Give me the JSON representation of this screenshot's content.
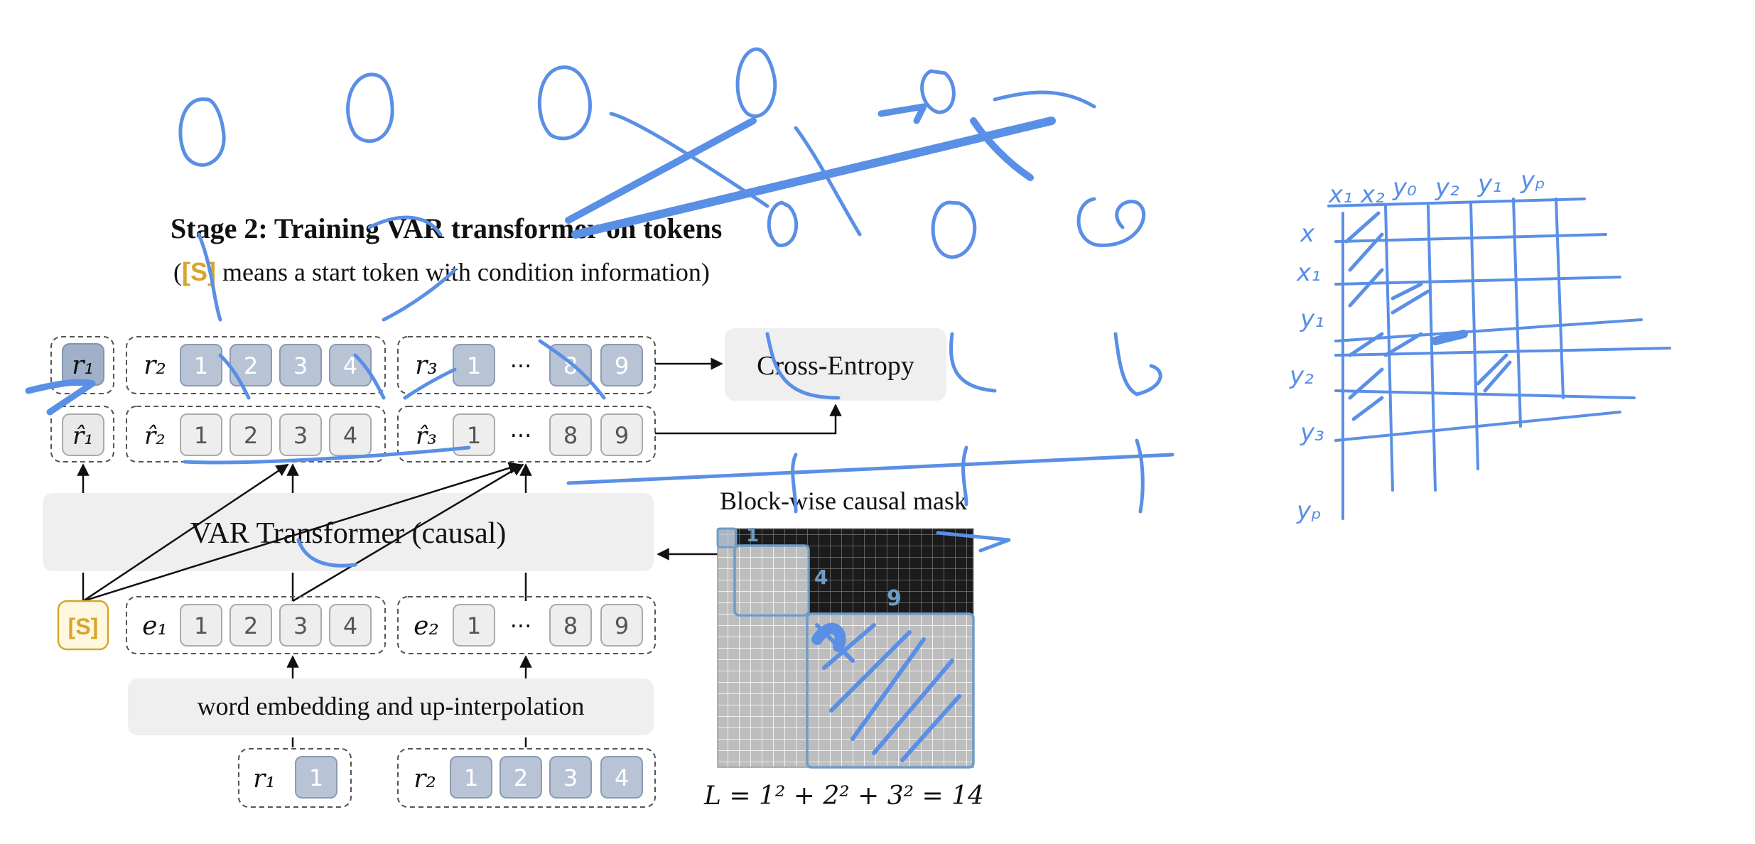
{
  "title": "Stage 2:  Training VAR transformer on tokens",
  "subtitle": {
    "open": "(",
    "token": "[S]",
    "text": " means a start token with condition information)"
  },
  "start_token": "[S]",
  "rows": {
    "targets": [
      {
        "label": "r₁",
        "tokens": []
      },
      {
        "label": "r₂",
        "tokens": [
          "1",
          "2",
          "3",
          "4"
        ]
      },
      {
        "label": "r₃",
        "tokens": [
          "1",
          "···",
          "8",
          "9"
        ]
      }
    ],
    "predictions": [
      {
        "label": "r̂₁",
        "tokens": []
      },
      {
        "label": "r̂₂",
        "tokens": [
          "1",
          "2",
          "3",
          "4"
        ]
      },
      {
        "label": "r̂₃",
        "tokens": [
          "1",
          "···",
          "8",
          "9"
        ]
      }
    ],
    "inputs": [
      {
        "label": "e₁",
        "tokens": [
          "1",
          "2",
          "3",
          "4"
        ]
      },
      {
        "label": "e₂",
        "tokens": [
          "1",
          "···",
          "8",
          "9"
        ]
      }
    ],
    "residuals": [
      {
        "label": "r₁",
        "tokens": [
          "1"
        ]
      },
      {
        "label": "r₂",
        "tokens": [
          "1",
          "2",
          "3",
          "4"
        ]
      }
    ]
  },
  "boxes": {
    "loss": "Cross-Entropy",
    "transformer": "VAR Transformer (causal)",
    "embedding": "word embedding and up-interpolation"
  },
  "mask": {
    "title": "Block-wise causal mask",
    "block_labels": [
      "1",
      "4",
      "9"
    ],
    "grid_size": 14,
    "blocks": [
      1,
      4,
      9
    ]
  },
  "formula": "L = 1² + 2² + 3² = 14",
  "handwriting": {
    "right_grid_cols": [
      "x₁",
      "x₂",
      "y₀",
      "y₂",
      "y₁",
      "yₚ"
    ],
    "right_grid_rows": [
      "x",
      "x₁",
      "y₁",
      "y₂",
      "y₃",
      "yₚ"
    ],
    "ink_color": "#5a8fe6"
  }
}
